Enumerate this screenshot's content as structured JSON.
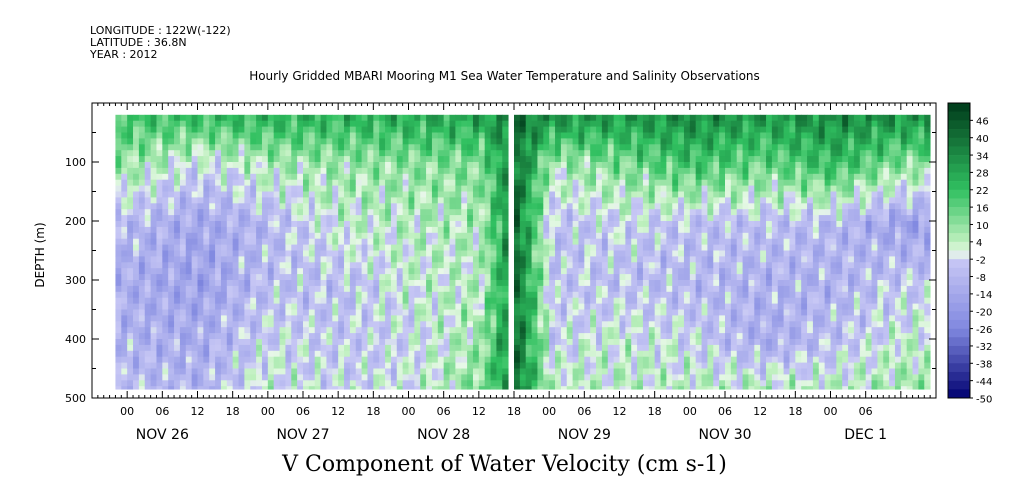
{
  "header": {
    "longitude": "LONGITUDE : 122W(-122)",
    "latitude": "LATITUDE : 36.8N",
    "year": "YEAR : 2012"
  },
  "chart_data": {
    "type": "heatmap",
    "title": "Hourly Gridded MBARI Mooring M1 Sea Water Temperature and Salinity Observations",
    "xlabel": "",
    "ylabel": "DEPTH (m)",
    "footer_label": "V Component of Water Velocity (cm s-1)",
    "ylim": [
      500,
      0
    ],
    "y_ticks": [
      100,
      200,
      300,
      400,
      500
    ],
    "x_hour_ticks": [
      "00",
      "06",
      "12",
      "18",
      "00",
      "06",
      "12",
      "18",
      "00",
      "06",
      "12",
      "18",
      "00",
      "06",
      "12",
      "18",
      "00",
      "06",
      "12",
      "18",
      "00",
      "06"
    ],
    "x_day_labels": [
      "NOV 26",
      "NOV 27",
      "NOV 28",
      "NOV 29",
      "NOV 30",
      "DEC  1"
    ],
    "x_range_hours": [
      -6,
      138
    ],
    "data_x_range_hours": [
      -2,
      137
    ],
    "data_depth_range": [
      20,
      485
    ],
    "colorbar": {
      "labels": [
        "46",
        "40",
        "34",
        "28",
        "22",
        "16",
        "10",
        "4",
        "-2",
        "-8",
        "-14",
        "-20",
        "-26",
        "-32",
        "-38",
        "-44",
        "-50"
      ],
      "min": -50,
      "max": 52,
      "step": 3
    },
    "colors": {
      "positive_max": "#003a1a",
      "positive_mid": "#30c060",
      "zero": "#e8f8e8",
      "negative_mid": "#8088e0",
      "negative_max": "#000070"
    },
    "series": [
      {
        "name": "",
        "depth_profile_hint": [
          {
            "hour": 0,
            "values": [
              20,
              8,
              -8,
              -12,
              -10,
              -6
            ]
          },
          {
            "hour": 12,
            "values": [
              22,
              -2,
              -14,
              -16,
              -12,
              -10
            ]
          },
          {
            "hour": 24,
            "values": [
              24,
              6,
              -8,
              -6,
              -2,
              2
            ]
          },
          {
            "hour": 36,
            "values": [
              24,
              8,
              2,
              -6,
              -4,
              -2
            ]
          },
          {
            "hour": 48,
            "values": [
              26,
              10,
              4,
              2,
              -2,
              0
            ]
          },
          {
            "hour": 60,
            "values": [
              28,
              12,
              6,
              4,
              8,
              12
            ]
          },
          {
            "hour": 66,
            "values": [
              40,
              40,
              40,
              40,
              40,
              40
            ]
          },
          {
            "hour": 72,
            "values": [
              32,
              6,
              -6,
              -4,
              -2,
              4
            ]
          },
          {
            "hour": 84,
            "values": [
              30,
              12,
              -2,
              -6,
              2,
              4
            ]
          },
          {
            "hour": 96,
            "values": [
              34,
              20,
              -6,
              -8,
              -2,
              4
            ]
          },
          {
            "hour": 108,
            "values": [
              30,
              14,
              -6,
              -10,
              -12,
              6
            ]
          },
          {
            "hour": 120,
            "values": [
              34,
              22,
              -8,
              -10,
              -6,
              4
            ]
          },
          {
            "hour": 132,
            "values": [
              32,
              10,
              -16,
              -4,
              2,
              8
            ]
          }
        ]
      }
    ]
  }
}
